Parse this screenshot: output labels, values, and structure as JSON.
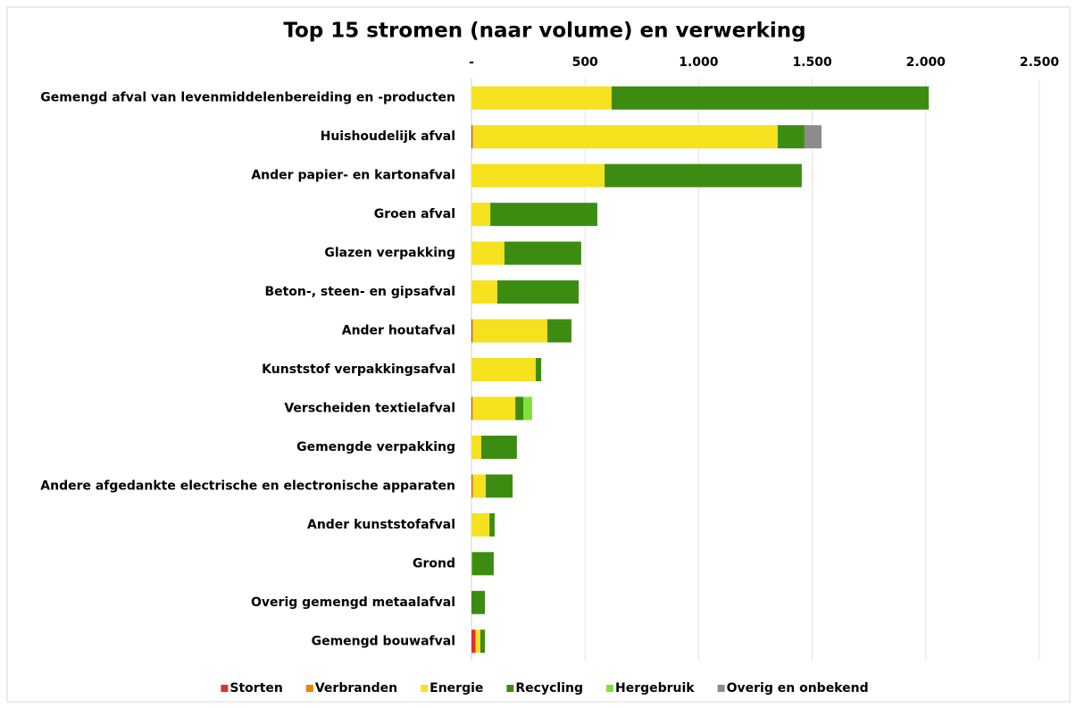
{
  "chart_data": {
    "type": "stacked_barh",
    "title": "Top 15 stromen (naar volume) en verwerking",
    "categories": [
      "Gemengd afval van levenmiddelenbereiding en -producten",
      "Huishoudelijk afval",
      "Ander papier- en kartonafval",
      "Groen afval",
      "Glazen verpakking",
      "Beton-, steen- en gipsafval",
      "Ander houtafval",
      "Kunststof verpakkingsafval",
      "Verscheiden textielafval",
      "Gemengde verpakking",
      "Andere afgedankte electrische en electronische apparaten",
      "Ander kunststofafval",
      "Grond",
      "Overig gemengd metaalafval",
      "Gemengd bouwafval"
    ],
    "series": [
      {
        "name": "Storten",
        "color": "#e03030",
        "values": [
          0,
          5,
          0,
          0,
          0,
          0,
          5,
          0,
          4,
          0,
          3,
          0,
          0,
          0,
          16
        ]
      },
      {
        "name": "Verbranden",
        "color": "#f08000",
        "values": [
          0,
          0,
          0,
          0,
          0,
          0,
          0,
          0,
          0,
          0,
          3,
          0,
          0,
          0,
          4
        ]
      },
      {
        "name": "Energie",
        "color": "#f5e11e",
        "values": [
          617,
          1343,
          586,
          83,
          145,
          114,
          329,
          283,
          189,
          43,
          57,
          79,
          2,
          0,
          19
        ]
      },
      {
        "name": "Recycling",
        "color": "#3d8c12",
        "values": [
          1396,
          118,
          868,
          471,
          338,
          358,
          106,
          24,
          35,
          157,
          118,
          23,
          96,
          59,
          20
        ]
      },
      {
        "name": "Hergebruik",
        "color": "#7ee23a",
        "values": [
          0,
          0,
          0,
          0,
          0,
          0,
          0,
          0,
          39,
          0,
          0,
          0,
          0,
          0,
          0
        ]
      },
      {
        "name": "Overig en onbekend",
        "color": "#8c8c8c",
        "values": [
          0,
          75,
          0,
          0,
          0,
          0,
          0,
          0,
          0,
          0,
          0,
          0,
          0,
          0,
          0
        ]
      }
    ],
    "xlim": [
      0,
      2500
    ],
    "xticks": [
      {
        "value": 0,
        "label": "-"
      },
      500,
      {
        "value": 1000,
        "label": "1.000"
      },
      {
        "value": 1500,
        "label": "1.500"
      },
      {
        "value": 2000,
        "label": "2.000"
      },
      {
        "value": 2500,
        "label": "2.500"
      }
    ],
    "grid": true,
    "legend": "bottom"
  }
}
